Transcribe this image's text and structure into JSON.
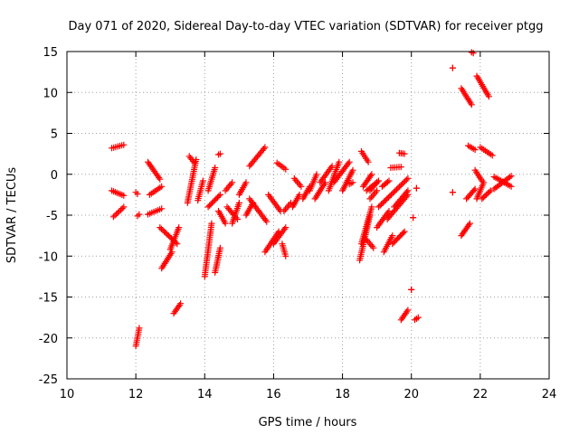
{
  "chart_data": {
    "type": "scatter",
    "title": "Day 071 of 2020, Sidereal Day-to-day VTEC variation (SDTVAR) for receiver ptgg",
    "xlabel": "GPS time / hours",
    "ylabel": "SDTVAR / TECUs",
    "xlim": [
      10,
      24
    ],
    "ylim": [
      -25,
      15
    ],
    "xticks": [
      10,
      12,
      14,
      16,
      18,
      20,
      22,
      24
    ],
    "yticks": [
      -25,
      -20,
      -15,
      -10,
      -5,
      0,
      5,
      10,
      15
    ],
    "grid": true,
    "marker": "+",
    "marker_color": "#ff0000",
    "tracks": [
      [
        [
          11.3,
          3.2
        ],
        [
          11.65,
          3.6
        ]
      ],
      [
        [
          11.3,
          -2.0
        ],
        [
          11.65,
          -2.6
        ]
      ],
      [
        [
          11.35,
          -5.2
        ],
        [
          11.65,
          -4.0
        ]
      ],
      [
        [
          12.0,
          -21.0
        ],
        [
          12.1,
          -18.8
        ]
      ],
      [
        [
          12.0,
          -2.2
        ],
        [
          12.05,
          -2.4
        ]
      ],
      [
        [
          12.05,
          -5.1
        ],
        [
          12.1,
          -4.9
        ]
      ],
      [
        [
          12.4,
          -2.5
        ],
        [
          12.75,
          -1.5
        ]
      ],
      [
        [
          12.35,
          1.5
        ],
        [
          12.7,
          -0.6
        ]
      ],
      [
        [
          12.35,
          -4.9
        ],
        [
          12.75,
          -4.2
        ]
      ],
      [
        [
          12.75,
          -11.5
        ],
        [
          13.05,
          -9.5
        ]
      ],
      [
        [
          12.7,
          -6.5
        ],
        [
          13.2,
          -8.5
        ]
      ],
      [
        [
          13.1,
          -17.0
        ],
        [
          13.3,
          -15.8
        ]
      ],
      [
        [
          13.0,
          -9.2
        ],
        [
          13.25,
          -6.5
        ]
      ],
      [
        [
          13.5,
          -3.5
        ],
        [
          13.75,
          1.8
        ]
      ],
      [
        [
          13.55,
          2.2
        ],
        [
          13.7,
          1.4
        ]
      ],
      [
        [
          13.8,
          -3.2
        ],
        [
          13.95,
          -0.8
        ]
      ],
      [
        [
          14.0,
          -12.5
        ],
        [
          14.2,
          -6.0
        ]
      ],
      [
        [
          14.1,
          -2.0
        ],
        [
          14.3,
          0.8
        ]
      ],
      [
        [
          14.1,
          -4.0
        ],
        [
          14.45,
          -2.5
        ]
      ],
      [
        [
          14.3,
          -12.0
        ],
        [
          14.45,
          -9.0
        ]
      ],
      [
        [
          14.4,
          2.4
        ],
        [
          14.45,
          2.5
        ]
      ],
      [
        [
          14.4,
          -4.5
        ],
        [
          14.6,
          -6.0
        ]
      ],
      [
        [
          14.6,
          -2.0
        ],
        [
          14.8,
          -1.0
        ]
      ],
      [
        [
          14.65,
          -4.0
        ],
        [
          14.95,
          -5.5
        ]
      ],
      [
        [
          14.8,
          -6.0
        ],
        [
          15.0,
          -3.5
        ]
      ],
      [
        [
          15.0,
          -2.5
        ],
        [
          15.2,
          -1.0
        ]
      ],
      [
        [
          15.2,
          -5.0
        ],
        [
          15.4,
          -3.5
        ]
      ],
      [
        [
          15.3,
          1.0
        ],
        [
          15.75,
          3.3
        ]
      ],
      [
        [
          15.3,
          -3.0
        ],
        [
          15.8,
          -5.8
        ]
      ],
      [
        [
          15.75,
          -9.5
        ],
        [
          16.15,
          -7.0
        ]
      ],
      [
        [
          15.85,
          -2.5
        ],
        [
          16.2,
          -4.5
        ]
      ],
      [
        [
          16.0,
          -8.5
        ],
        [
          16.35,
          -6.5
        ]
      ],
      [
        [
          16.1,
          1.4
        ],
        [
          16.35,
          0.6
        ]
      ],
      [
        [
          16.25,
          -8.5
        ],
        [
          16.35,
          -10.0
        ]
      ],
      [
        [
          16.3,
          -4.5
        ],
        [
          16.5,
          -3.5
        ]
      ],
      [
        [
          16.55,
          -4.0
        ],
        [
          16.75,
          -2.5
        ]
      ],
      [
        [
          16.6,
          -0.5
        ],
        [
          16.8,
          -1.5
        ]
      ],
      [
        [
          16.85,
          -3.0
        ],
        [
          17.05,
          -1.5
        ]
      ],
      [
        [
          17.05,
          -2.0
        ],
        [
          17.25,
          0.0
        ]
      ],
      [
        [
          17.2,
          -3.0
        ],
        [
          17.5,
          -1.0
        ]
      ],
      [
        [
          17.35,
          -1.0
        ],
        [
          17.7,
          1.0
        ]
      ],
      [
        [
          17.6,
          -2.0
        ],
        [
          17.9,
          1.5
        ]
      ],
      [
        [
          17.75,
          -1.0
        ],
        [
          18.2,
          1.5
        ]
      ],
      [
        [
          18.0,
          -2.0
        ],
        [
          18.3,
          0.5
        ]
      ],
      [
        [
          18.2,
          -1.2
        ],
        [
          18.3,
          -1.0
        ]
      ],
      [
        [
          18.55,
          2.8
        ],
        [
          18.75,
          1.5
        ]
      ],
      [
        [
          18.5,
          -10.5
        ],
        [
          18.8,
          -5.0
        ]
      ],
      [
        [
          18.55,
          -8.5
        ],
        [
          18.85,
          -4.0
        ]
      ],
      [
        [
          18.6,
          -1.5
        ],
        [
          18.85,
          0.0
        ]
      ],
      [
        [
          18.7,
          -2.0
        ],
        [
          19.05,
          -0.8
        ]
      ],
      [
        [
          18.7,
          -8.0
        ],
        [
          18.9,
          -9.0
        ]
      ],
      [
        [
          18.8,
          -2.0
        ],
        [
          19.0,
          -1.0
        ]
      ],
      [
        [
          18.8,
          -3.0
        ],
        [
          19.0,
          -2.0
        ]
      ],
      [
        [
          19.0,
          -6.5
        ],
        [
          19.35,
          -4.5
        ]
      ],
      [
        [
          19.05,
          -4.0
        ],
        [
          19.9,
          -0.5
        ]
      ],
      [
        [
          19.15,
          -1.5
        ],
        [
          19.35,
          -0.8
        ]
      ],
      [
        [
          19.2,
          -9.5
        ],
        [
          19.45,
          -7.5
        ]
      ],
      [
        [
          19.3,
          -5.5
        ],
        [
          19.9,
          -2.5
        ]
      ],
      [
        [
          19.45,
          -8.5
        ],
        [
          19.8,
          -7.0
        ]
      ],
      [
        [
          19.4,
          0.8
        ],
        [
          19.7,
          0.9
        ]
      ],
      [
        [
          19.5,
          -4.0
        ],
        [
          19.9,
          -2.0
        ]
      ],
      [
        [
          19.65,
          2.6
        ],
        [
          19.8,
          2.5
        ]
      ],
      [
        [
          19.7,
          -17.8
        ],
        [
          19.9,
          -16.6
        ]
      ],
      [
        [
          20.0,
          -14.1
        ],
        [
          20.0,
          -14.1
        ]
      ],
      [
        [
          20.05,
          -5.3
        ],
        [
          20.05,
          -5.3
        ]
      ],
      [
        [
          20.1,
          -17.8
        ],
        [
          20.2,
          -17.5
        ]
      ],
      [
        [
          20.15,
          -1.7
        ],
        [
          20.15,
          -1.7
        ]
      ],
      [
        [
          21.2,
          13.0
        ],
        [
          21.2,
          13.0
        ]
      ],
      [
        [
          21.2,
          -2.2
        ],
        [
          21.2,
          -2.2
        ]
      ],
      [
        [
          21.45,
          10.5
        ],
        [
          21.75,
          8.5
        ]
      ],
      [
        [
          21.45,
          -7.5
        ],
        [
          21.7,
          -6.0
        ]
      ],
      [
        [
          21.6,
          -3.0
        ],
        [
          21.85,
          -1.8
        ]
      ],
      [
        [
          21.65,
          3.5
        ],
        [
          21.85,
          3.0
        ]
      ],
      [
        [
          21.75,
          14.9
        ],
        [
          21.8,
          14.8
        ]
      ],
      [
        [
          21.85,
          0.5
        ],
        [
          22.05,
          -0.8
        ]
      ],
      [
        [
          21.9,
          -3.0
        ],
        [
          22.1,
          -1.0
        ]
      ],
      [
        [
          21.9,
          12.0
        ],
        [
          22.25,
          9.5
        ]
      ],
      [
        [
          22.0,
          3.3
        ],
        [
          22.35,
          2.3
        ]
      ],
      [
        [
          22.05,
          -3.0
        ],
        [
          22.3,
          -2.0
        ]
      ],
      [
        [
          22.4,
          -1.8
        ],
        [
          22.9,
          -0.2
        ]
      ],
      [
        [
          22.4,
          -0.3
        ],
        [
          22.9,
          -1.5
        ]
      ]
    ]
  }
}
